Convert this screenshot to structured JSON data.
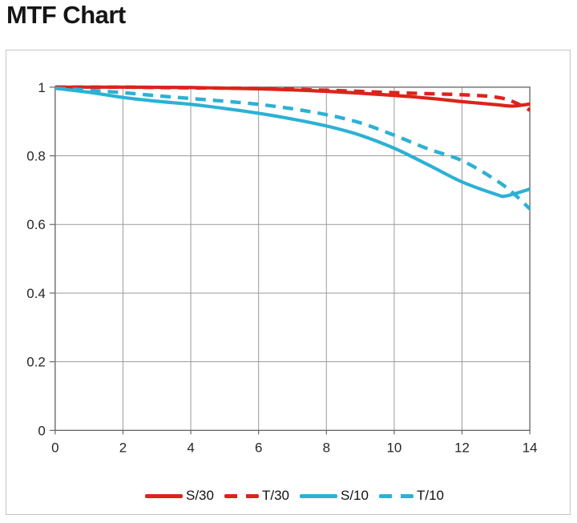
{
  "page": {
    "title": "MTF Chart"
  },
  "colors": {
    "red": "#dc231b",
    "cyan": "#2cb1d4",
    "grid": "#9a9a9a",
    "axis": "#666666",
    "panel_border": "#c6c6c6",
    "tick_text": "#262626",
    "title_text": "#151515"
  },
  "chart_data": {
    "type": "line",
    "title": "MTF Chart",
    "xlabel": "",
    "ylabel": "",
    "xlim": [
      0,
      14
    ],
    "ylim": [
      0,
      1
    ],
    "x_ticks": [
      0,
      2,
      4,
      6,
      8,
      10,
      12,
      14
    ],
    "y_ticks": [
      0,
      0.2,
      0.4,
      0.6,
      0.8,
      1
    ],
    "y_tick_labels": [
      "0",
      "0.2",
      "0.4",
      "0.6",
      "0.8",
      "1"
    ],
    "grid": true,
    "legend_position": "bottom",
    "series": [
      {
        "name": "S/30",
        "color": "#dc231b",
        "style": "solid",
        "points": [
          [
            0,
            1.0
          ],
          [
            2,
            1.0
          ],
          [
            4,
            0.999
          ],
          [
            6,
            0.995
          ],
          [
            8,
            0.988
          ],
          [
            10,
            0.976
          ],
          [
            11,
            0.968
          ],
          [
            12,
            0.958
          ],
          [
            13,
            0.949
          ],
          [
            13.5,
            0.945
          ],
          [
            14,
            0.951
          ]
        ]
      },
      {
        "name": "T/30",
        "color": "#dc231b",
        "style": "dashed",
        "points": [
          [
            0,
            1.0
          ],
          [
            2,
            1.0
          ],
          [
            4,
            0.998
          ],
          [
            6,
            0.996
          ],
          [
            8,
            0.991
          ],
          [
            10,
            0.984
          ],
          [
            12,
            0.978
          ],
          [
            13,
            0.971
          ],
          [
            13.5,
            0.958
          ],
          [
            14,
            0.933
          ]
        ]
      },
      {
        "name": "S/10",
        "color": "#2cb1d4",
        "style": "solid",
        "points": [
          [
            0,
            0.997
          ],
          [
            1,
            0.985
          ],
          [
            2,
            0.97
          ],
          [
            3,
            0.959
          ],
          [
            4,
            0.95
          ],
          [
            5,
            0.938
          ],
          [
            6,
            0.924
          ],
          [
            7,
            0.907
          ],
          [
            8,
            0.887
          ],
          [
            9,
            0.86
          ],
          [
            10,
            0.822
          ],
          [
            11,
            0.774
          ],
          [
            12,
            0.724
          ],
          [
            13,
            0.688
          ],
          [
            13.3,
            0.683
          ],
          [
            14,
            0.703
          ]
        ]
      },
      {
        "name": "T/10",
        "color": "#2cb1d4",
        "style": "dashed",
        "points": [
          [
            0,
            0.997
          ],
          [
            1,
            0.991
          ],
          [
            2,
            0.984
          ],
          [
            3,
            0.975
          ],
          [
            4,
            0.967
          ],
          [
            5,
            0.959
          ],
          [
            6,
            0.95
          ],
          [
            7,
            0.937
          ],
          [
            8,
            0.92
          ],
          [
            9,
            0.896
          ],
          [
            10,
            0.86
          ],
          [
            11,
            0.82
          ],
          [
            12,
            0.786
          ],
          [
            13,
            0.729
          ],
          [
            13.5,
            0.692
          ],
          [
            14,
            0.645
          ]
        ]
      }
    ]
  }
}
